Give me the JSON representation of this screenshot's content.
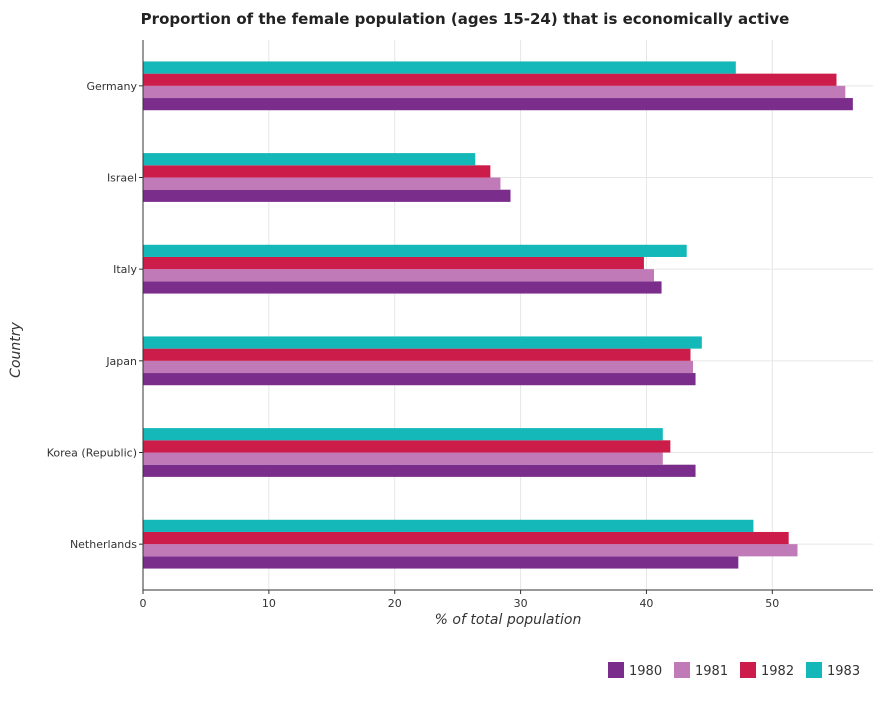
{
  "chart_data": {
    "type": "bar",
    "orientation": "horizontal",
    "title": "Proportion of the female population (ages 15-24) that is economically active",
    "xlabel": "% of total population",
    "ylabel": "Country",
    "xlim": [
      0,
      58
    ],
    "xticks": [
      0,
      10,
      20,
      30,
      40,
      50
    ],
    "grid": true,
    "legend_position": "bottom-right",
    "categories": [
      "Germany",
      "Israel",
      "Italy",
      "Japan",
      "Korea (Republic)",
      "Netherlands"
    ],
    "series": [
      {
        "name": "1980",
        "color": "#7b2d8b",
        "values": [
          56.4,
          29.2,
          41.2,
          43.9,
          43.9,
          47.3
        ]
      },
      {
        "name": "1981",
        "color": "#c07ab8",
        "values": [
          55.8,
          28.4,
          40.6,
          43.7,
          41.3,
          52.0
        ]
      },
      {
        "name": "1982",
        "color": "#cc1d4a",
        "values": [
          55.1,
          27.6,
          39.8,
          43.5,
          41.9,
          51.3
        ]
      },
      {
        "name": "1983",
        "color": "#14b8b8",
        "values": [
          47.1,
          26.4,
          43.2,
          44.4,
          41.3,
          48.5
        ]
      }
    ]
  }
}
